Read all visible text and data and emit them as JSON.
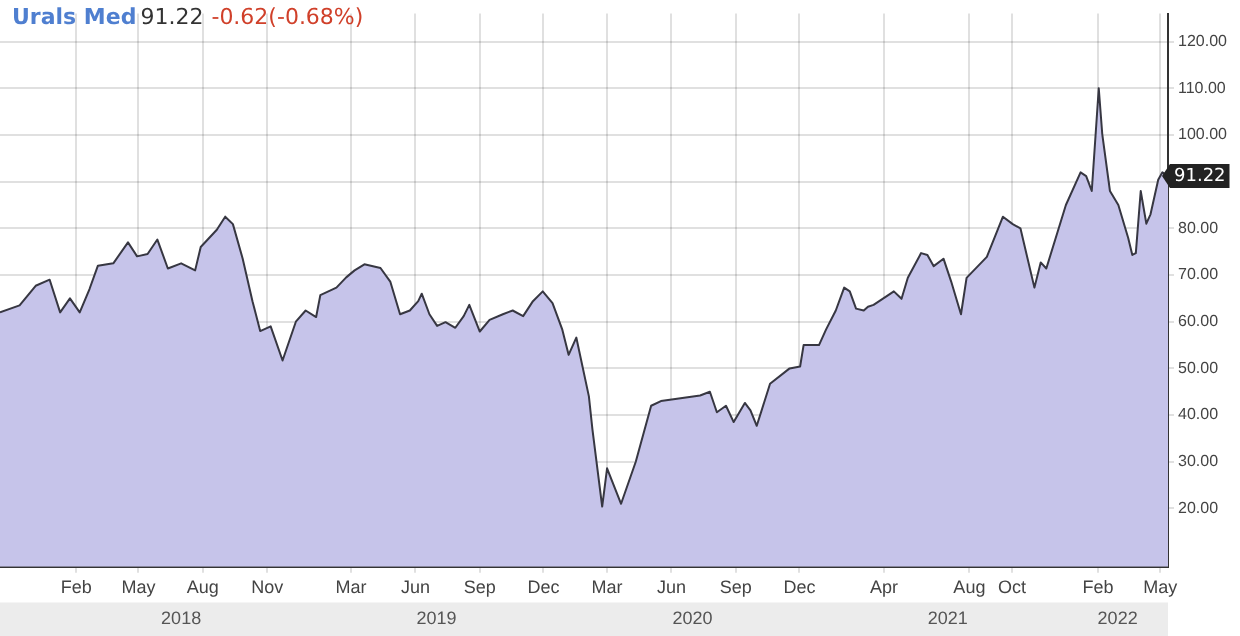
{
  "chart_data": {
    "type": "area",
    "title": "Urals Med",
    "subtitle": "91.22",
    "annotations": [
      "-0.62(-0.68%)",
      {
        "text": "91.22",
        "x": "2022-05-12",
        "y": 91.22
      }
    ],
    "x": [
      "2017-10-15",
      "2017-11-12",
      "2017-12-05",
      "2017-12-25",
      "2018-01-09",
      "2018-01-23",
      "2018-02-06",
      "2018-02-20",
      "2018-03-04",
      "2018-03-26",
      "2018-04-16",
      "2018-04-29",
      "2018-05-14",
      "2018-05-28",
      "2018-06-12",
      "2018-07-01",
      "2018-07-21",
      "2018-07-29",
      "2018-08-21",
      "2018-09-02",
      "2018-09-13",
      "2018-09-27",
      "2018-10-11",
      "2018-10-22",
      "2018-11-06",
      "2018-11-23",
      "2018-12-12",
      "2018-12-26",
      "2019-01-10",
      "2019-01-16",
      "2019-02-08",
      "2019-02-22",
      "2019-03-06",
      "2019-03-20",
      "2019-04-12",
      "2019-04-26",
      "2019-05-10",
      "2019-05-24",
      "2019-06-05",
      "2019-06-10",
      "2019-06-21",
      "2019-07-02",
      "2019-07-14",
      "2019-07-28",
      "2019-08-09",
      "2019-08-17",
      "2019-09-01",
      "2019-09-15",
      "2019-10-04",
      "2019-10-18",
      "2019-11-02",
      "2019-11-16",
      "2019-11-30",
      "2019-12-14",
      "2019-12-28",
      "2020-01-06",
      "2020-01-17",
      "2020-02-04",
      "2020-02-09",
      "2020-02-23",
      "2020-03-01",
      "2020-03-21",
      "2020-04-11",
      "2020-05-03",
      "2020-05-17",
      "2020-06-09",
      "2020-07-12",
      "2020-07-26",
      "2020-08-05",
      "2020-08-18",
      "2020-08-29",
      "2020-09-14",
      "2020-09-22",
      "2020-10-01",
      "2020-10-20",
      "2020-11-17",
      "2020-12-02",
      "2020-12-07",
      "2020-12-29",
      "2021-01-08",
      "2021-01-22",
      "2021-02-03",
      "2021-02-11",
      "2021-02-20",
      "2021-03-03",
      "2021-03-09",
      "2021-03-17",
      "2021-04-07",
      "2021-04-15",
      "2021-04-26",
      "2021-05-05",
      "2021-05-24",
      "2021-06-02",
      "2021-06-11",
      "2021-06-25",
      "2021-07-06",
      "2021-07-20",
      "2021-07-28",
      "2021-08-26",
      "2021-09-18",
      "2021-10-02",
      "2021-10-13",
      "2021-11-02",
      "2021-11-11",
      "2021-11-19",
      "2021-12-17",
      "2022-01-07",
      "2022-01-15",
      "2022-01-23",
      "2022-02-02",
      "2022-02-07",
      "2022-02-18",
      "2022-03-02",
      "2022-03-16",
      "2022-03-22",
      "2022-03-27",
      "2022-04-03",
      "2022-04-11",
      "2022-04-17",
      "2022-04-28",
      "2022-05-04",
      "2022-05-12"
    ],
    "series": [
      {
        "color": "#c6c4ea",
        "values": [
          62,
          63.5,
          67.7,
          69,
          62,
          65,
          62,
          67,
          72,
          72.5,
          77,
          74,
          74.5,
          77.6,
          71.4,
          72.5,
          71,
          76,
          79.7,
          82.5,
          80.9,
          73.5,
          64.4,
          58,
          59,
          51.7,
          60,
          62.4,
          61,
          65.7,
          67.3,
          69.5,
          71,
          72.3,
          71.5,
          68.6,
          61.6,
          62.4,
          64.4,
          66,
          61.6,
          59.1,
          59.9,
          58.7,
          61.2,
          63.6,
          57.9,
          60.4,
          61.6,
          62.4,
          61.2,
          64.4,
          66.5,
          64,
          58.3,
          52.9,
          56.6,
          44,
          37,
          20.4,
          28.6,
          21,
          30,
          42,
          43,
          43.5,
          44.2,
          45,
          40.6,
          42,
          38.5,
          42.6,
          41,
          37.7,
          46.7,
          50,
          50.4,
          55,
          55,
          58.3,
          62.4,
          67.3,
          66.5,
          62.8,
          62.4,
          63.2,
          63.6,
          65.7,
          66.5,
          64.9,
          69.4,
          74.7,
          74.3,
          71.9,
          73.5,
          68.6,
          61.6,
          69.4,
          73.9,
          82.5,
          80.9,
          80,
          67.3,
          72.7,
          71.4,
          85,
          92,
          91.2,
          88,
          110,
          100.2,
          88,
          85,
          78,
          74.3,
          74.7,
          88,
          81,
          83,
          90.4,
          92,
          91.2
        ]
      }
    ],
    "xlim": [
      "2017-10-15",
      "2022-05-12"
    ],
    "xticks": [
      {
        "value": "2018-02-01",
        "label": "Feb"
      },
      {
        "value": "2018-05-01",
        "label": "May"
      },
      {
        "value": "2018-08-01",
        "label": "Aug"
      },
      {
        "value": "2018-11-01",
        "label": "Nov"
      },
      {
        "value": "2019-03-01",
        "label": "Mar"
      },
      {
        "value": "2019-06-01",
        "label": "Jun"
      },
      {
        "value": "2019-09-01",
        "label": "Sep"
      },
      {
        "value": "2019-12-01",
        "label": "Dec"
      },
      {
        "value": "2020-03-01",
        "label": "Mar"
      },
      {
        "value": "2020-06-01",
        "label": "Jun"
      },
      {
        "value": "2020-09-01",
        "label": "Sep"
      },
      {
        "value": "2020-12-01",
        "label": "Dec"
      },
      {
        "value": "2021-04-01",
        "label": "Apr"
      },
      {
        "value": "2021-08-01",
        "label": "Aug"
      },
      {
        "value": "2021-10-01",
        "label": "Oct"
      },
      {
        "value": "2022-02-01",
        "label": "Feb"
      },
      {
        "value": "2022-05-01",
        "label": "May"
      }
    ],
    "x2lim": [
      "2017-10-15",
      "2022-05-12"
    ],
    "x2ticks": [
      {
        "value": "2018-07-01",
        "label": "2018"
      },
      {
        "value": "2019-07-01",
        "label": "2019"
      },
      {
        "value": "2020-07-01",
        "label": "2020"
      },
      {
        "value": "2021-07-01",
        "label": "2021"
      },
      {
        "value": "2022-03-01",
        "label": "2022"
      }
    ],
    "ylim": [
      7.5,
      126
    ],
    "yticks": [
      {
        "value": 20,
        "label": "20.00"
      },
      {
        "value": 30,
        "label": "30.00"
      },
      {
        "value": 40,
        "label": "40.00"
      },
      {
        "value": 50,
        "label": "50.00"
      },
      {
        "value": 60,
        "label": "60.00"
      },
      {
        "value": 70,
        "label": "70.00"
      },
      {
        "value": 80,
        "label": "80.00"
      },
      {
        "value": 90,
        "label": null
      },
      {
        "value": 100,
        "label": "100.00"
      },
      {
        "value": 110,
        "label": "110.00"
      },
      {
        "value": 120,
        "label": "120.00"
      }
    ],
    "grid": true,
    "legend": false,
    "marker": "none",
    "line_style": "solid"
  }
}
